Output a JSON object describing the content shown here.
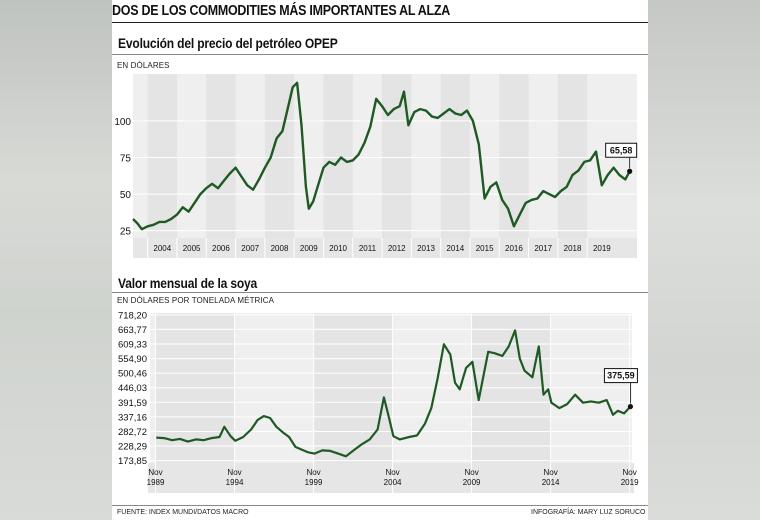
{
  "headline": "DOS DE LOS COMMODITIES MÁS IMPORTANTES AL ALZA",
  "footer": {
    "source": "FUENTE: INDEX MUNDI/DATOS MACRO",
    "credit": "INFOGRAFÍA: MARY LUZ SORUCO"
  },
  "colors": {
    "line": "#1f5a24",
    "plot_bg": "#efefef",
    "label_border": "#111111"
  },
  "chart_data": [
    {
      "type": "line",
      "title": "Evolución del precio del petróleo OPEP",
      "ylabel": "EN DÓLARES",
      "x_ticks": [
        "2004",
        "2005",
        "2006",
        "2007",
        "2008",
        "2009",
        "2010",
        "2011",
        "2012",
        "2013",
        "2014",
        "2015",
        "2016",
        "2017",
        "2018",
        "2019"
      ],
      "y_ticks": [
        "25",
        "50",
        "75",
        "100"
      ],
      "xlim": [
        2003.0,
        2020.2
      ],
      "ylim": [
        20,
        132
      ],
      "last_label": "65,58",
      "series": [
        {
          "x": [
            2003.0,
            2003.15,
            2003.3,
            2003.5,
            2003.7,
            2003.9,
            2004.1,
            2004.3,
            2004.5,
            2004.7,
            2004.9,
            2005.1,
            2005.3,
            2005.5,
            2005.7,
            2005.9,
            2006.1,
            2006.3,
            2006.5,
            2006.7,
            2006.9,
            2007.1,
            2007.3,
            2007.5,
            2007.7,
            2007.9,
            2008.1,
            2008.3,
            2008.45,
            2008.6,
            2008.75,
            2008.9,
            2009.0,
            2009.15,
            2009.3,
            2009.5,
            2009.7,
            2009.9,
            2010.1,
            2010.3,
            2010.5,
            2010.7,
            2010.9,
            2011.1,
            2011.3,
            2011.5,
            2011.7,
            2011.9,
            2012.1,
            2012.25,
            2012.4,
            2012.6,
            2012.8,
            2013.0,
            2013.2,
            2013.4,
            2013.6,
            2013.8,
            2014.0,
            2014.2,
            2014.4,
            2014.6,
            2014.8,
            2015.0,
            2015.2,
            2015.4,
            2015.6,
            2015.8,
            2016.0,
            2016.2,
            2016.4,
            2016.6,
            2016.8,
            2017.0,
            2017.2,
            2017.4,
            2017.6,
            2017.8,
            2018.0,
            2018.2,
            2018.4,
            2018.6,
            2018.8,
            2019.0,
            2019.2,
            2019.4,
            2019.6,
            2019.8,
            2019.95
          ],
          "y": [
            33,
            30,
            26,
            28,
            29,
            31,
            31,
            33,
            36,
            41,
            38,
            44,
            50,
            54,
            57,
            54,
            59,
            64,
            68,
            62,
            56,
            53,
            60,
            68,
            75,
            88,
            93,
            110,
            123,
            126,
            97,
            55,
            40,
            45,
            55,
            68,
            72,
            70,
            75,
            72,
            73,
            77,
            85,
            96,
            115,
            110,
            104,
            108,
            110,
            120,
            97,
            106,
            108,
            107,
            103,
            102,
            105,
            108,
            105,
            104,
            107,
            100,
            84,
            47,
            55,
            58,
            46,
            40,
            28,
            36,
            44,
            46,
            47,
            52,
            50,
            48,
            52,
            55,
            63,
            66,
            72,
            73,
            79,
            56,
            63,
            68,
            63,
            60,
            65.58
          ]
        }
      ]
    },
    {
      "type": "line",
      "title": "Valor mensual de la soya",
      "ylabel": "EN DÓLARES POR TONELADA MÉTRICA",
      "x_ticks": [
        "Nov 1989",
        "Nov 1994",
        "Nov 1999",
        "Nov 2004",
        "Nov 2009",
        "Nov 2014",
        "Nov 2019"
      ],
      "y_ticks": [
        "173,85",
        "228,29",
        "282,72",
        "337,16",
        "391,59",
        "446,03",
        "500,46",
        "554,90",
        "609,33",
        "663,77",
        "718,20"
      ],
      "xlim": [
        1989.5,
        2020.0
      ],
      "ylim": [
        165,
        725
      ],
      "last_label": "375,59",
      "series": [
        {
          "x": [
            1989.9,
            1990.4,
            1990.9,
            1991.4,
            1991.9,
            1992.4,
            1992.9,
            1993.4,
            1993.9,
            1994.2,
            1994.6,
            1994.9,
            1995.4,
            1995.9,
            1996.3,
            1996.7,
            1997.1,
            1997.5,
            1997.9,
            1998.3,
            1998.7,
            1999.1,
            1999.5,
            1999.9,
            2000.4,
            2000.9,
            2001.4,
            2001.9,
            2002.4,
            2002.9,
            2003.4,
            2003.9,
            2004.3,
            2004.6,
            2004.9,
            2005.3,
            2005.9,
            2006.4,
            2006.9,
            2007.3,
            2007.7,
            2008.1,
            2008.5,
            2008.8,
            2009.1,
            2009.5,
            2009.9,
            2010.3,
            2010.9,
            2011.3,
            2011.8,
            2012.2,
            2012.6,
            2012.9,
            2013.2,
            2013.7,
            2014.1,
            2014.4,
            2014.7,
            2014.9,
            2015.4,
            2015.9,
            2016.4,
            2016.9,
            2017.4,
            2017.9,
            2018.4,
            2018.8,
            2019.1,
            2019.5,
            2019.9
          ],
          "y": [
            260,
            258,
            250,
            255,
            245,
            253,
            250,
            258,
            262,
            300,
            265,
            248,
            262,
            290,
            325,
            340,
            333,
            300,
            280,
            262,
            225,
            215,
            205,
            200,
            212,
            210,
            200,
            190,
            213,
            235,
            253,
            290,
            410,
            340,
            265,
            253,
            262,
            268,
            312,
            370,
            480,
            608,
            570,
            465,
            440,
            520,
            543,
            400,
            580,
            575,
            565,
            600,
            660,
            555,
            510,
            485,
            600,
            420,
            440,
            390,
            370,
            385,
            420,
            390,
            395,
            390,
            400,
            345,
            360,
            350,
            375.59
          ]
        }
      ]
    }
  ]
}
